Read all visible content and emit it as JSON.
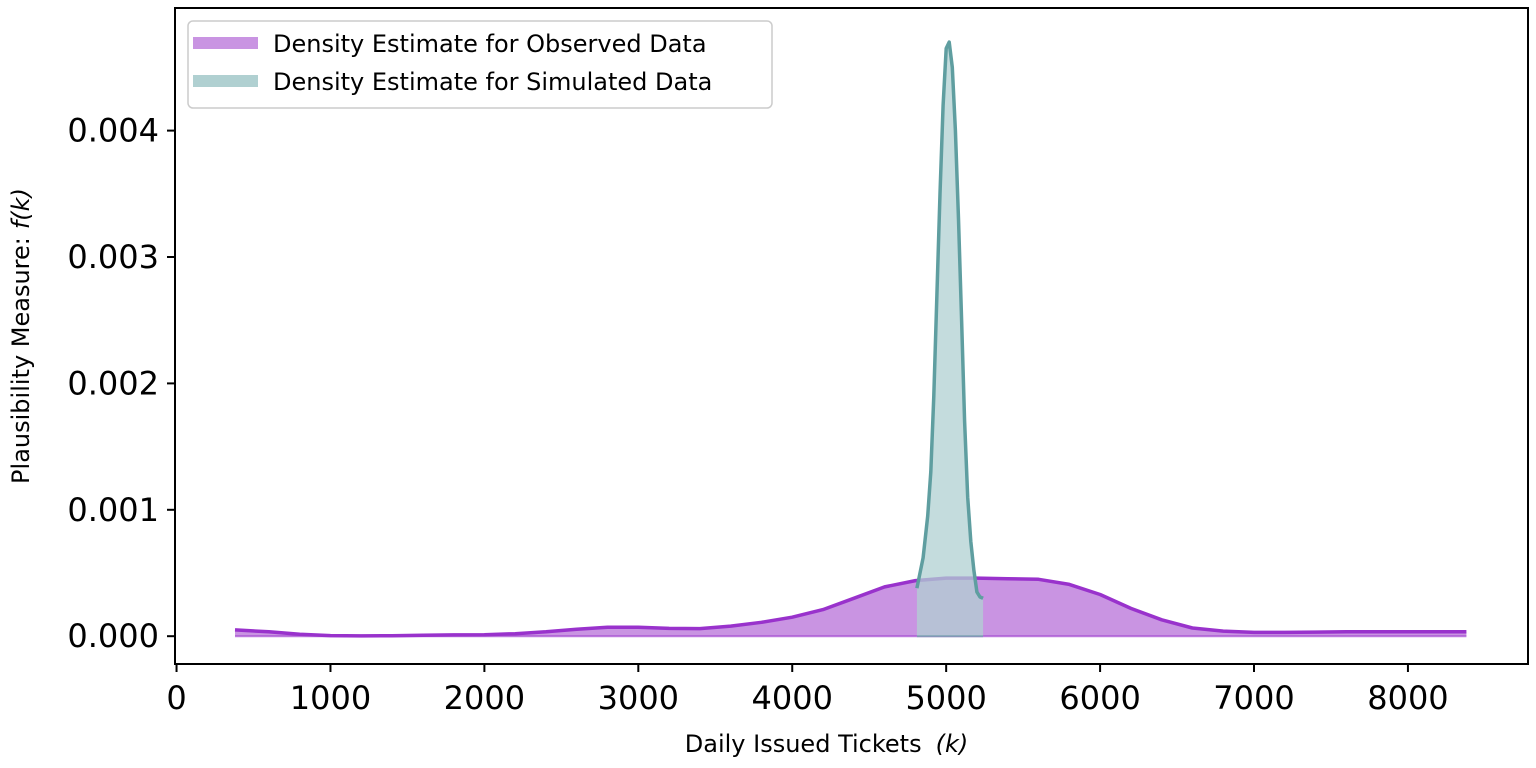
{
  "chart_data": {
    "type": "area",
    "title": "",
    "xlabel": "Daily Issued Tickets",
    "xlabel_math": "(k)",
    "ylabel": "Plausibility Measure:",
    "ylabel_math": "f(k)",
    "xlim": [
      -10,
      8780
    ],
    "ylim": [
      -0.00022,
      0.00497
    ],
    "xticks": [
      0,
      1000,
      2000,
      3000,
      4000,
      5000,
      6000,
      7000,
      8000
    ],
    "xtick_labels": [
      "0",
      "1000",
      "2000",
      "3000",
      "4000",
      "5000",
      "6000",
      "7000",
      "8000"
    ],
    "yticks": [
      0.0,
      0.001,
      0.002,
      0.003,
      0.004
    ],
    "ytick_labels": [
      "0.000",
      "0.001",
      "0.002",
      "0.003",
      "0.004"
    ],
    "grid": false,
    "legend": {
      "placement": "top-left"
    },
    "series": [
      {
        "name": "Density Estimate for Observed Data",
        "line_color": "#9932CC",
        "fill_color": "#C994E2",
        "x": [
          380,
          600,
          800,
          1000,
          1200,
          1400,
          1600,
          1800,
          2000,
          2200,
          2400,
          2600,
          2800,
          3000,
          3200,
          3400,
          3600,
          3800,
          4000,
          4200,
          4400,
          4600,
          4800,
          5000,
          5200,
          5400,
          5600,
          5800,
          6000,
          6200,
          6400,
          6600,
          6800,
          7000,
          7200,
          7400,
          7600,
          7800,
          8000,
          8200,
          8380
        ],
        "y": [
          5e-05,
          3.5e-05,
          1.5e-05,
          5e-06,
          2e-06,
          4e-06,
          8e-06,
          1e-05,
          1.2e-05,
          2e-05,
          3.5e-05,
          5.5e-05,
          7e-05,
          7e-05,
          6.2e-05,
          6e-05,
          8e-05,
          0.00011,
          0.00015,
          0.00021,
          0.0003,
          0.00039,
          0.00044,
          0.00046,
          0.00046,
          0.000455,
          0.00045,
          0.00041,
          0.00033,
          0.00022,
          0.00013,
          6.5e-05,
          4e-05,
          3e-05,
          3e-05,
          3.2e-05,
          3.5e-05,
          3.5e-05,
          3.5e-05,
          3.5e-05,
          3.5e-05
        ]
      },
      {
        "name": "Density Estimate for Simulated Data",
        "line_color": "#5F9EA0",
        "fill_color": "#B0D0D1",
        "x": [
          4810,
          4850,
          4880,
          4900,
          4920,
          4940,
          4960,
          4980,
          5000,
          5020,
          5040,
          5060,
          5080,
          5100,
          5120,
          5140,
          5160,
          5180,
          5200,
          5220,
          5240
        ],
        "y": [
          0.00038,
          0.00062,
          0.00095,
          0.0013,
          0.0019,
          0.0027,
          0.0035,
          0.0042,
          0.00465,
          0.0047,
          0.0045,
          0.004,
          0.0033,
          0.0025,
          0.0017,
          0.0011,
          0.00075,
          0.00052,
          0.00035,
          0.00031,
          0.0003
        ]
      }
    ]
  }
}
